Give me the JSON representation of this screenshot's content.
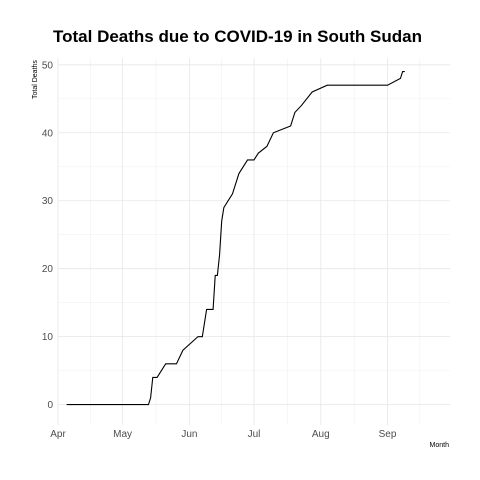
{
  "chart_data": {
    "type": "line",
    "title": "Total Deaths due to COVID-19 in South Sudan",
    "xlabel": "Month",
    "ylabel": "Total Deaths",
    "x_tick_labels": [
      "Apr",
      "May",
      "Jun",
      "Jul",
      "Aug",
      "Sep"
    ],
    "x_ticks": [
      "2020-04-01",
      "2020-05-01",
      "2020-06-01",
      "2020-07-01",
      "2020-08-01",
      "2020-09-01"
    ],
    "y_ticks": [
      0,
      10,
      20,
      30,
      40,
      50
    ],
    "xlim": [
      "2020-04-01",
      "2020-09-30"
    ],
    "ylim": [
      -3,
      51
    ],
    "grid": true,
    "series": [
      {
        "x": [
          "2020-04-05",
          "2020-05-13",
          "2020-05-14",
          "2020-05-15",
          "2020-05-17",
          "2020-05-21",
          "2020-05-26",
          "2020-05-29",
          "2020-06-05",
          "2020-06-07",
          "2020-06-09",
          "2020-06-12",
          "2020-06-13",
          "2020-06-14",
          "2020-06-15",
          "2020-06-16",
          "2020-06-17",
          "2020-06-19",
          "2020-06-21",
          "2020-06-24",
          "2020-06-28",
          "2020-07-01",
          "2020-07-03",
          "2020-07-07",
          "2020-07-10",
          "2020-07-18",
          "2020-07-20",
          "2020-07-23",
          "2020-07-28",
          "2020-08-04",
          "2020-09-01",
          "2020-09-07",
          "2020-09-08",
          "2020-09-09"
        ],
        "values": [
          0,
          0,
          1,
          4,
          4,
          6,
          6,
          8,
          10,
          10,
          14,
          14,
          19,
          19,
          22,
          27,
          29,
          30,
          31,
          34,
          36,
          36,
          37,
          38,
          40,
          41,
          43,
          44,
          46,
          47,
          47,
          48,
          49,
          49
        ]
      }
    ]
  }
}
